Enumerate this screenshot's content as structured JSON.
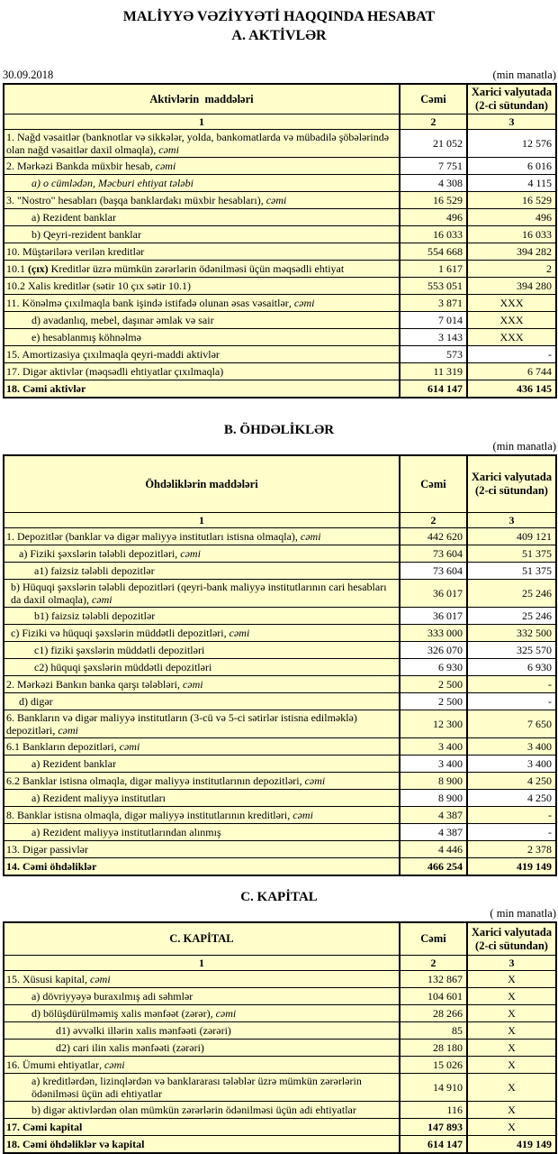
{
  "page": {
    "title_line1": "MALİYYƏ VƏZİYYƏTİ HAQQINDA HESABAT",
    "title_line2": "A. AKTİVLƏR"
  },
  "colors": {
    "cell_highlight": "#FFFFCC",
    "cell_plain": "#FFFFFF",
    "border": "#000000",
    "text": "#000000"
  },
  "sections": [
    {
      "id": "A",
      "heading": null,
      "date": "30.09.2018",
      "unit_note": "(min manatla)",
      "cols": {
        "c1": "Aktivlərin  maddələri",
        "c2": "Cəmi",
        "c3": "Xarici valyutada (2-ci sütundan)"
      },
      "index_row": [
        "1",
        "2",
        "3"
      ],
      "rows": [
        {
          "p": [
            [
              "1. Nağd vəsaitlər (banknotlar və sikkələr, yolda, bankomatlarda və mübadilə şöbələrində olan nağd vəsaitlər daxil olmaqla)",
              "n"
            ],
            [
              ", cəmi",
              "i"
            ]
          ],
          "v2": "21 052",
          "v3": "12 576",
          "y2": false,
          "y3": false,
          "ind": 2,
          "vt": true
        },
        {
          "p": [
            [
              "2. Mərkəzi Bankda müxbir hesab",
              "n"
            ],
            [
              ", cəmi",
              "i"
            ]
          ],
          "v2": "7 751",
          "v3": "6 016",
          "y2": false,
          "y3": false,
          "ind": 2
        },
        {
          "p": [
            [
              "a) o cümlədən, Məcburi ehtiyat tələbi",
              "i"
            ]
          ],
          "v2": "4 308",
          "v3": "4 115",
          "y2": false,
          "y3": false,
          "ind": 30
        },
        {
          "p": [
            [
              "3. \"Nostro\" hesabları (başqa banklardakı müxbir hesabları)",
              "n"
            ],
            [
              ", cəmi",
              "i"
            ]
          ],
          "v2": "16 529",
          "v3": "16 529",
          "y2": true,
          "y3": true,
          "ind": 2
        },
        {
          "p": [
            [
              "a) Rezident banklar",
              "n"
            ]
          ],
          "v2": "496",
          "v3": "496",
          "y2": true,
          "y3": true,
          "ind": 30
        },
        {
          "p": [
            [
              "b) Qeyri-rezident banklar",
              "n"
            ]
          ],
          "v2": "16 033",
          "v3": "16 033",
          "y2": true,
          "y3": true,
          "ind": 30
        },
        {
          "p": [
            [
              "10. Müştərilərə verilən kreditlər",
              "n"
            ]
          ],
          "v2": "554 668",
          "v3": "394 282",
          "y2": true,
          "y3": true,
          "ind": 2
        },
        {
          "p": [
            [
              "10.1 ",
              "n"
            ],
            [
              "(çıx)",
              "b"
            ],
            [
              " Kreditlər üzrə mümkün zərərlərin ödənilməsi üçün məqsədli ehtiyat",
              "n"
            ]
          ],
          "v2": "1 617",
          "v3": "2",
          "y2": true,
          "y3": true,
          "ind": 2
        },
        {
          "p": [
            [
              "10.2 Xalis kreditlər (sətir 10 çıx sətir 10.1)",
              "n"
            ]
          ],
          "v2": "553 051",
          "v3": "394 280",
          "y2": true,
          "y3": true,
          "ind": 2
        },
        {
          "p": [
            [
              "11. Könəlmə çıxılmaqla bank işində istifadə olunan əsas vəsaitlər",
              "n"
            ],
            [
              ", cəmi",
              "i"
            ]
          ],
          "v2": "3 871",
          "v3": "XXX",
          "y2": true,
          "y3": true,
          "ind": 2
        },
        {
          "p": [
            [
              "d) avadanlıq, mebel, daşınar əmlak və sair",
              "n"
            ]
          ],
          "v2": "7 014",
          "v3": "XXX",
          "y2": false,
          "y3": true,
          "ind": 30
        },
        {
          "p": [
            [
              "e) hesablanmış köhnəlmə",
              "n"
            ]
          ],
          "v2": "3 143",
          "v3": "XXX",
          "y2": false,
          "y3": true,
          "ind": 30
        },
        {
          "p": [
            [
              "15. Amortizasiya çıxılmaqla qeyri-maddi aktivlər",
              "n"
            ]
          ],
          "v2": "573",
          "v3": "-",
          "y2": false,
          "y3": false,
          "ind": 2
        },
        {
          "p": [
            [
              "17. Digər aktivlər (məqsədli ehtiyatlar çıxılmaqla)",
              "n"
            ]
          ],
          "v2": "11 319",
          "v3": "6 744",
          "y2": true,
          "y3": true,
          "ind": 2
        },
        {
          "p": [
            [
              "18. Cəmi aktivlər",
              "n"
            ]
          ],
          "v2": "614 147",
          "v3": "436 145",
          "y2": true,
          "y3": true,
          "ind": 2,
          "b": true
        }
      ]
    },
    {
      "id": "B",
      "heading": "B. ÖHDƏLİKLƏR",
      "unit_note": "(min manatla)",
      "cols": {
        "c1": "Öhdəliklərin maddələri",
        "c2": "Cəmi",
        "c3": "Xarici valyutada (2-ci sütundan)"
      },
      "index_row": [
        "1",
        "2",
        "3"
      ],
      "rows": [
        {
          "p": [
            [
              "1. Depozitlər (banklar və digər maliyyə institutları istisna olmaqla)",
              "n"
            ],
            [
              ", cəmi",
              "i"
            ]
          ],
          "v2": "442 620",
          "v3": "409 121",
          "y2": true,
          "y3": true,
          "ind": 2
        },
        {
          "p": [
            [
              "a)  Fiziki şəxslərin tələbli depozitləri",
              "n"
            ],
            [
              ", cəmi",
              "i"
            ]
          ],
          "v2": "73 604",
          "v3": "51 375",
          "y2": true,
          "y3": true,
          "ind": 16
        },
        {
          "p": [
            [
              "a1) faizsiz tələbli depozitlər",
              "n"
            ]
          ],
          "v2": "73 604",
          "v3": "51 375",
          "y2": false,
          "y3": false,
          "ind": 33
        },
        {
          "p": [
            [
              "b) Hüquqi şəxslərin tələbli depozitləri (qeyri-bank maliyyə institutlarının cari hesabları da daxil olmaqla)",
              "n"
            ],
            [
              ", cəmi",
              "i"
            ]
          ],
          "v2": "36 017",
          "v3": "25 246",
          "y2": true,
          "y3": true,
          "ind": 7
        },
        {
          "p": [
            [
              "b1) faizsiz tələbli depozitlər",
              "n"
            ]
          ],
          "v2": "36 017",
          "v3": "25 246",
          "y2": false,
          "y3": false,
          "ind": 33
        },
        {
          "p": [
            [
              "c) Fiziki və hüquqi şəxslərin müddətli depozitləri",
              "n"
            ],
            [
              ", cəmi",
              "i"
            ]
          ],
          "v2": "333 000",
          "v3": "332 500",
          "y2": true,
          "y3": true,
          "ind": 7
        },
        {
          "p": [
            [
              "c1) fiziki şəxslərin müddətli depozitləri",
              "n"
            ]
          ],
          "v2": "326 070",
          "v3": "325 570",
          "y2": false,
          "y3": false,
          "ind": 33
        },
        {
          "p": [
            [
              "c2) hüquqi şəxslərin müddətli depozitləri",
              "n"
            ]
          ],
          "v2": "6 930",
          "v3": "6 930",
          "y2": false,
          "y3": false,
          "ind": 33
        },
        {
          "p": [
            [
              "2. Mərkəzi Bankın banka qarşı tələbləri",
              "n"
            ],
            [
              ", cəmi",
              "i"
            ]
          ],
          "v2": "2 500",
          "v3": "-",
          "y2": true,
          "y3": true,
          "ind": 2
        },
        {
          "p": [
            [
              "d) digər",
              "n"
            ]
          ],
          "v2": "2 500",
          "v3": "-",
          "y2": false,
          "y3": false,
          "ind": 16
        },
        {
          "p": [
            [
              "6. Bankların və digər maliyyə institutların (3-cü və 5-ci sətirlər istisna edilməklə) depozitləri",
              "n"
            ],
            [
              ", cəmi",
              "i"
            ]
          ],
          "v2": "12 300",
          "v3": "7 650",
          "y2": true,
          "y3": true,
          "ind": 2
        },
        {
          "p": [
            [
              "6.1  Bankların depozitləri",
              "n"
            ],
            [
              ", cəmi",
              "i"
            ]
          ],
          "v2": "3 400",
          "v3": "3 400",
          "y2": true,
          "y3": true,
          "ind": 2
        },
        {
          "p": [
            [
              "a) Rezident banklar",
              "n"
            ]
          ],
          "v2": "3 400",
          "v3": "3 400",
          "y2": false,
          "y3": false,
          "ind": 30
        },
        {
          "p": [
            [
              "6.2 Banklar istisna olmaqla, digər maliyyə institutlarının depozitləri",
              "n"
            ],
            [
              ", cəmi",
              "i"
            ]
          ],
          "v2": "8 900",
          "v3": "4 250",
          "y2": true,
          "y3": true,
          "ind": 2
        },
        {
          "p": [
            [
              "a) Rezident maliyyə institutları",
              "n"
            ]
          ],
          "v2": "8 900",
          "v3": "4 250",
          "y2": false,
          "y3": false,
          "ind": 30
        },
        {
          "p": [
            [
              "8. Banklar istisna olmaqla, digər maliyyə institutlarının kreditləri",
              "n"
            ],
            [
              ", cəmi",
              "i"
            ]
          ],
          "v2": "4 387",
          "v3": "-",
          "y2": true,
          "y3": true,
          "ind": 2
        },
        {
          "p": [
            [
              "a) Rezident maliyyə institutlarından alınmış",
              "n"
            ]
          ],
          "v2": "4 387",
          "v3": "-",
          "y2": false,
          "y3": false,
          "ind": 30
        },
        {
          "p": [
            [
              "13. Digər passivlər",
              "n"
            ]
          ],
          "v2": "4 446",
          "v3": "2 378",
          "y2": true,
          "y3": true,
          "ind": 2
        },
        {
          "p": [
            [
              "14. Cəmi öhdəliklər",
              "n"
            ]
          ],
          "v2": "466 254",
          "v3": "419 149",
          "y2": true,
          "y3": true,
          "ind": 2,
          "b": true
        }
      ]
    },
    {
      "id": "C",
      "heading": "C. KAPİTAL",
      "unit_note": "( min manatla)",
      "cols": {
        "c1": "C. KAPİTAL",
        "c2": "Cəmi",
        "c3": "Xarici valyutada (2-ci sütundan)"
      },
      "index_row": [
        "1",
        "2",
        "3"
      ],
      "rows": [
        {
          "p": [
            [
              "15. Xüsusi kapital",
              "n"
            ],
            [
              ", cəmi",
              "i"
            ]
          ],
          "v2": "132 867",
          "v3": "X",
          "y2": true,
          "y3": true,
          "ind": 2
        },
        {
          "p": [
            [
              "a) dövriyyəyə buraxılmış adi səhmlər",
              "n"
            ]
          ],
          "v2": "104 601",
          "v3": "X",
          "y2": true,
          "y3": true,
          "ind": 30
        },
        {
          "p": [
            [
              "d) bölüşdürülməmiş xalis mənfəət (zərər)",
              "n"
            ],
            [
              ", cəmi",
              "i"
            ]
          ],
          "v2": "28 266",
          "v3": "X",
          "y2": true,
          "y3": true,
          "ind": 30
        },
        {
          "p": [
            [
              "d1) əvvəlki illərin xalis mənfəəti (zərəri)",
              "n"
            ]
          ],
          "v2": "85",
          "v3": "X",
          "y2": true,
          "y3": true,
          "ind": 57
        },
        {
          "p": [
            [
              "d2) cari ilin xalis mənfəəti (zərəri)",
              "n"
            ]
          ],
          "v2": "28 180",
          "v3": "X",
          "y2": true,
          "y3": true,
          "ind": 57
        },
        {
          "p": [
            [
              "16. Ümumi ehtiyatlar",
              "n"
            ],
            [
              ", cəmi",
              "i"
            ]
          ],
          "v2": "15 026",
          "v3": "X",
          "y2": true,
          "y3": true,
          "ind": 2
        },
        {
          "p": [
            [
              "a) kreditlərdən, lizinqlərdən və banklararası  tələblər üzrə mümkün zərərlərin ödənilməsi üçün adi ehtiyatlar",
              "n"
            ]
          ],
          "v2": "14 910",
          "v3": "X",
          "y2": true,
          "y3": true,
          "ind": 30
        },
        {
          "p": [
            [
              "b) digər aktivlərdən olan mümkün zərərlərin ödənilməsi üçün adi ehtiyatlar",
              "n"
            ]
          ],
          "v2": "116",
          "v3": "X",
          "y2": true,
          "y3": true,
          "ind": 30
        },
        {
          "p": [
            [
              "17. Cəmi kapital",
              "n"
            ]
          ],
          "v2": "147 893",
          "v3": "X",
          "y2": true,
          "y3": true,
          "ind": 2,
          "b": true
        },
        {
          "p": [
            [
              "18. Cəmi öhdəliklər və kapital",
              "n"
            ]
          ],
          "v2": "614 147",
          "v3": "419 149",
          "y2": true,
          "y3": true,
          "ind": 2,
          "b": true
        }
      ]
    }
  ]
}
